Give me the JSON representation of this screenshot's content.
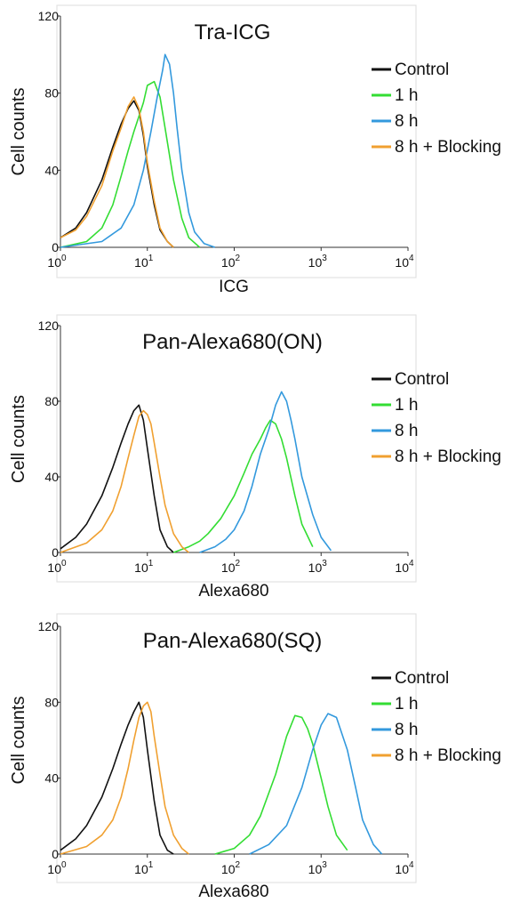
{
  "chart_data": [
    {
      "type": "line",
      "title": "Tra-ICG",
      "xlabel": "ICG",
      "ylabel": "Cell counts",
      "x_scale": "log",
      "xlim": [
        1,
        10000
      ],
      "ylim": [
        0,
        120
      ],
      "x_ticks": [
        1,
        10,
        100,
        1000,
        10000
      ],
      "x_tick_labels": [
        {
          "base": "10",
          "exp": "0"
        },
        {
          "base": "10",
          "exp": "1"
        },
        {
          "base": "10",
          "exp": "2"
        },
        {
          "base": "10",
          "exp": "3"
        },
        {
          "base": "10",
          "exp": "4"
        }
      ],
      "y_ticks": [
        "0",
        "40",
        "80",
        "120"
      ],
      "legend_position": "right",
      "grid": false,
      "series": [
        {
          "name": "Control",
          "color": "#111111",
          "x": [
            1,
            1.5,
            2,
            3,
            4,
            5,
            6,
            7,
            8,
            9,
            10,
            12,
            14,
            17,
            20
          ],
          "y": [
            5,
            10,
            18,
            35,
            52,
            64,
            72,
            76,
            71,
            58,
            42,
            22,
            9,
            3,
            0
          ]
        },
        {
          "name": "1 h",
          "color": "#33dd33",
          "x": [
            1,
            2,
            3,
            4,
            5,
            6,
            7,
            8,
            9,
            10,
            12,
            14,
            16,
            20,
            25,
            30,
            40
          ],
          "y": [
            0,
            3,
            10,
            22,
            37,
            50,
            60,
            68,
            75,
            84,
            86,
            78,
            62,
            35,
            15,
            5,
            0
          ]
        },
        {
          "name": "8 h",
          "color": "#3399dd",
          "x": [
            1,
            3,
            5,
            7,
            9,
            11,
            13,
            15,
            16,
            18,
            20,
            22,
            25,
            30,
            35,
            45,
            60
          ],
          "y": [
            0,
            3,
            10,
            22,
            40,
            60,
            78,
            92,
            100,
            95,
            80,
            62,
            40,
            18,
            8,
            2,
            0
          ]
        },
        {
          "name": "8 h + Blocking",
          "color": "#f0a030",
          "x": [
            1,
            1.5,
            2,
            3,
            4,
            5,
            6,
            7,
            8,
            9,
            10,
            12,
            14,
            17,
            20
          ],
          "y": [
            5,
            9,
            16,
            32,
            50,
            62,
            73,
            78,
            72,
            60,
            44,
            24,
            10,
            3,
            0
          ]
        }
      ]
    },
    {
      "type": "line",
      "title": "Pan-Alexa680(ON)",
      "xlabel": "Alexa680",
      "ylabel": "Cell counts",
      "x_scale": "log",
      "xlim": [
        1,
        10000
      ],
      "ylim": [
        0,
        120
      ],
      "x_ticks": [
        1,
        10,
        100,
        1000,
        10000
      ],
      "x_tick_labels": [
        {
          "base": "10",
          "exp": "0"
        },
        {
          "base": "10",
          "exp": "1"
        },
        {
          "base": "10",
          "exp": "2"
        },
        {
          "base": "10",
          "exp": "3"
        },
        {
          "base": "10",
          "exp": "4"
        }
      ],
      "y_ticks": [
        "0",
        "40",
        "80",
        "120"
      ],
      "legend_position": "right",
      "grid": false,
      "series": [
        {
          "name": "Control",
          "color": "#111111",
          "x": [
            1,
            1.5,
            2,
            3,
            4,
            5,
            6,
            7,
            8,
            9,
            10,
            12,
            14,
            17,
            20
          ],
          "y": [
            2,
            8,
            15,
            30,
            45,
            58,
            68,
            75,
            78,
            70,
            55,
            30,
            12,
            3,
            0
          ]
        },
        {
          "name": "1 h",
          "color": "#33dd33",
          "x": [
            20,
            30,
            40,
            50,
            70,
            100,
            130,
            160,
            200,
            230,
            260,
            300,
            350,
            400,
            500,
            600,
            800
          ],
          "y": [
            0,
            3,
            6,
            10,
            18,
            30,
            42,
            52,
            60,
            66,
            70,
            68,
            60,
            50,
            30,
            15,
            3
          ]
        },
        {
          "name": "8 h",
          "color": "#3399dd",
          "x": [
            40,
            60,
            80,
            100,
            130,
            160,
            200,
            250,
            300,
            350,
            400,
            450,
            500,
            600,
            800,
            1000,
            1300
          ],
          "y": [
            0,
            3,
            7,
            12,
            22,
            35,
            52,
            65,
            78,
            85,
            80,
            70,
            60,
            40,
            20,
            8,
            1
          ]
        },
        {
          "name": "8 h + Blocking",
          "color": "#f0a030",
          "x": [
            1,
            2,
            3,
            4,
            5,
            6,
            7,
            8,
            9,
            10,
            11,
            12,
            14,
            16,
            20,
            25,
            30
          ],
          "y": [
            0,
            5,
            12,
            22,
            35,
            50,
            62,
            72,
            75,
            73,
            68,
            58,
            40,
            25,
            10,
            3,
            0
          ]
        }
      ]
    },
    {
      "type": "line",
      "title": "Pan-Alexa680(SQ)",
      "xlabel": "Alexa680",
      "ylabel": "Cell counts",
      "x_scale": "log",
      "xlim": [
        1,
        10000
      ],
      "ylim": [
        0,
        120
      ],
      "x_ticks": [
        1,
        10,
        100,
        1000,
        10000
      ],
      "x_tick_labels": [
        {
          "base": "10",
          "exp": "0"
        },
        {
          "base": "10",
          "exp": "1"
        },
        {
          "base": "10",
          "exp": "2"
        },
        {
          "base": "10",
          "exp": "3"
        },
        {
          "base": "10",
          "exp": "4"
        }
      ],
      "y_ticks": [
        "0",
        "40",
        "80",
        "120"
      ],
      "legend_position": "right",
      "grid": false,
      "series": [
        {
          "name": "Control",
          "color": "#111111",
          "x": [
            1,
            1.5,
            2,
            3,
            4,
            5,
            6,
            7,
            8,
            9,
            10,
            12,
            14,
            17,
            20
          ],
          "y": [
            2,
            8,
            15,
            30,
            45,
            58,
            68,
            75,
            80,
            72,
            55,
            28,
            10,
            2,
            0
          ]
        },
        {
          "name": "1 h",
          "color": "#33dd33",
          "x": [
            60,
            100,
            150,
            200,
            300,
            400,
            500,
            600,
            700,
            800,
            1000,
            1200,
            1500,
            2000
          ],
          "y": [
            0,
            3,
            10,
            20,
            42,
            62,
            73,
            72,
            66,
            58,
            40,
            25,
            10,
            2
          ]
        },
        {
          "name": "8 h",
          "color": "#3399dd",
          "x": [
            150,
            250,
            400,
            600,
            800,
            1000,
            1200,
            1500,
            2000,
            2500,
            3000,
            4000,
            5000
          ],
          "y": [
            0,
            5,
            15,
            35,
            55,
            68,
            74,
            72,
            55,
            35,
            18,
            5,
            0
          ]
        },
        {
          "name": "8 h + Blocking",
          "color": "#f0a030",
          "x": [
            1,
            2,
            3,
            4,
            5,
            6,
            7,
            8,
            9,
            10,
            11,
            12,
            14,
            16,
            20,
            25,
            30
          ],
          "y": [
            0,
            4,
            10,
            18,
            30,
            45,
            60,
            72,
            78,
            80,
            75,
            62,
            42,
            25,
            10,
            3,
            0
          ]
        }
      ]
    }
  ]
}
